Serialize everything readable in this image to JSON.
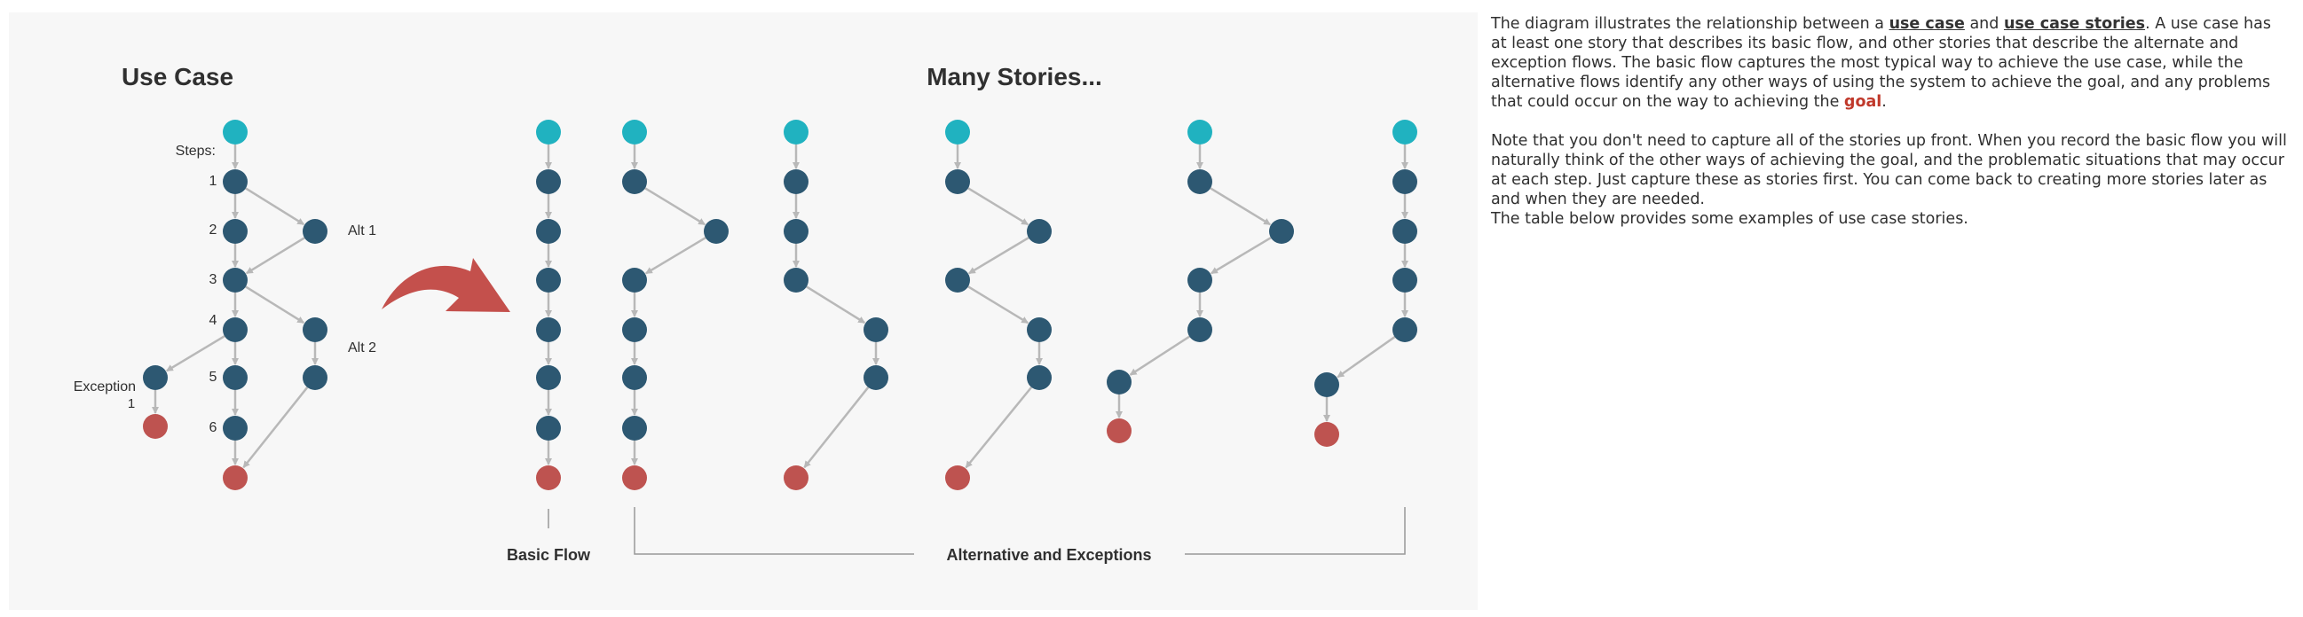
{
  "diagram": {
    "title_left": "Use Case",
    "title_right": "Many Stories...",
    "steps_label": "Steps:",
    "step_numbers": [
      "1",
      "2",
      "3",
      "4",
      "5",
      "6"
    ],
    "alt1_label": "Alt 1",
    "alt2_label": "Alt 2",
    "exception_label": "Exception",
    "exception_number": "1",
    "basic_flow_label": "Basic Flow",
    "alternatives_label": "Alternative and Exceptions",
    "colors": {
      "start": "#20b2c0",
      "step": "#2d5872",
      "end": "#be5350",
      "line": "#b8b8b8",
      "arrow": "#c4504c"
    }
  },
  "description": {
    "p1_prefix": "The diagram illustrates the relationship between a ",
    "p1_kw1": "use case",
    "p1_and": " and ",
    "p1_kw2": "use case stories",
    "p1_mid": ". A use case has at least one story that describes its basic flow, and other stories that describe the alternate and exception flows. The basic flow captures the most typical way to achieve the use case, while the alternative flows identify any other ways of using the system to achieve the goal, and any problems that could occur on the way to achieving the ",
    "p1_goal": "goal",
    "p1_end": ".",
    "p2": "Note that you don't need to capture all of the stories up front. When you record the basic flow you will naturally think of the other ways of achieving the goal, and the problematic situations that may occur at each step. Just capture these as stories first. You can come back to creating more stories later as and when they are needed.",
    "p3": "The table below provides some examples of use case stories."
  }
}
